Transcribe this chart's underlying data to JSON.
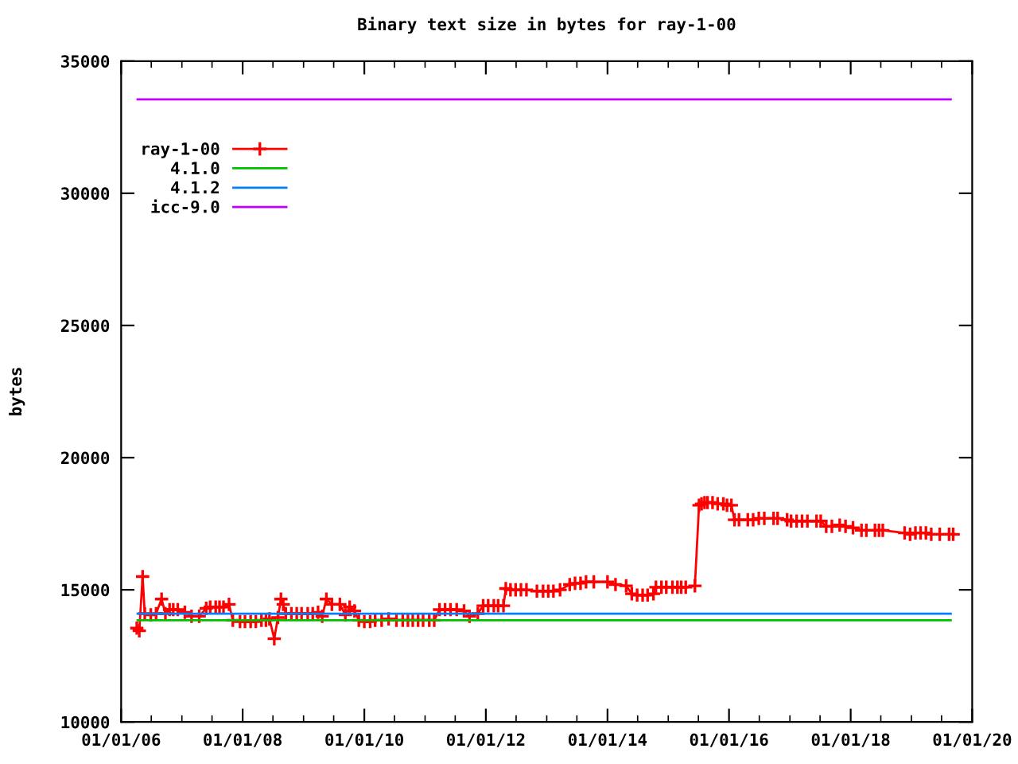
{
  "chart_data": {
    "type": "line",
    "title": "Binary text size in bytes for ray-1-00",
    "ylabel": "bytes",
    "ylim": [
      10000,
      35000
    ],
    "yticks": [
      10000,
      15000,
      20000,
      25000,
      30000,
      35000
    ],
    "xlim": [
      "2006-01-01",
      "2020-01-01"
    ],
    "xticks": [
      {
        "value": "2006-01-01",
        "label": "01/01/06"
      },
      {
        "value": "2006-07-01",
        "label": null
      },
      {
        "value": "2007-01-01",
        "label": null
      },
      {
        "value": "2007-07-01",
        "label": null
      },
      {
        "value": "2008-01-01",
        "label": "01/01/08"
      },
      {
        "value": "2008-07-01",
        "label": null
      },
      {
        "value": "2009-01-01",
        "label": null
      },
      {
        "value": "2009-07-01",
        "label": null
      },
      {
        "value": "2010-01-01",
        "label": "01/01/10"
      },
      {
        "value": "2010-07-01",
        "label": null
      },
      {
        "value": "2011-01-01",
        "label": null
      },
      {
        "value": "2011-07-01",
        "label": null
      },
      {
        "value": "2012-01-01",
        "label": "01/01/12"
      },
      {
        "value": "2012-07-01",
        "label": null
      },
      {
        "value": "2013-01-01",
        "label": null
      },
      {
        "value": "2013-07-01",
        "label": null
      },
      {
        "value": "2014-01-01",
        "label": "01/01/14"
      },
      {
        "value": "2014-07-01",
        "label": null
      },
      {
        "value": "2015-01-01",
        "label": null
      },
      {
        "value": "2015-07-01",
        "label": null
      },
      {
        "value": "2016-01-01",
        "label": "01/01/16"
      },
      {
        "value": "2016-07-01",
        "label": null
      },
      {
        "value": "2017-01-01",
        "label": null
      },
      {
        "value": "2017-07-01",
        "label": null
      },
      {
        "value": "2018-01-01",
        "label": "01/01/18"
      },
      {
        "value": "2018-07-01",
        "label": null
      },
      {
        "value": "2019-01-01",
        "label": null
      },
      {
        "value": "2019-07-01",
        "label": null
      },
      {
        "value": "2020-01-01",
        "label": "01/01/20"
      }
    ],
    "grid": false,
    "legend": "top left",
    "series": [
      {
        "name": "ray-1-00",
        "color": "#ff0000",
        "marker": "cross",
        "line_style": "solid",
        "x": [
          "2006-04-05",
          "2006-04-20",
          "2006-05-10",
          "2006-05-23",
          "2006-06-28",
          "2006-07-30",
          "2006-09-01",
          "2006-09-24",
          "2006-10-19",
          "2006-11-10",
          "2006-12-07",
          "2007-01-19",
          "2007-02-28",
          "2007-04-15",
          "2007-05-27",
          "2007-06-20",
          "2007-07-23",
          "2007-08-15",
          "2007-09-08",
          "2007-10-11",
          "2007-11-03",
          "2007-12-16",
          "2008-01-15",
          "2008-02-18",
          "2008-03-20",
          "2008-04-23",
          "2008-05-20",
          "2008-06-10",
          "2008-07-09",
          "2008-07-31",
          "2008-08-18",
          "2008-09-01",
          "2008-09-16",
          "2008-10-20",
          "2008-11-21",
          "2008-12-20",
          "2009-01-26",
          "2009-02-25",
          "2009-03-29",
          "2009-04-23",
          "2009-05-18",
          "2009-06-20",
          "2009-08-07",
          "2009-09-09",
          "2009-10-05",
          "2009-11-03",
          "2009-11-29",
          "2010-01-01",
          "2010-02-05",
          "2010-03-07",
          "2010-04-15",
          "2010-05-27",
          "2010-07-13",
          "2010-08-20",
          "2010-09-20",
          "2010-10-19",
          "2010-11-20",
          "2010-12-20",
          "2011-01-26",
          "2011-02-25",
          "2011-03-29",
          "2011-05-01",
          "2011-06-03",
          "2011-07-10",
          "2011-08-23",
          "2011-09-25",
          "2011-11-14",
          "2011-12-16",
          "2012-01-15",
          "2012-02-18",
          "2012-03-15",
          "2012-04-16",
          "2012-04-30",
          "2012-05-28",
          "2012-06-28",
          "2012-07-30",
          "2012-09-01",
          "2012-11-03",
          "2012-12-10",
          "2013-01-10",
          "2013-02-10",
          "2013-03-22",
          "2013-05-19",
          "2013-06-20",
          "2013-07-23",
          "2013-08-25",
          "2013-10-11",
          "2014-01-01",
          "2014-02-18",
          "2014-04-23",
          "2014-05-27",
          "2014-06-28",
          "2014-07-31",
          "2014-08-30",
          "2014-10-04",
          "2014-10-19",
          "2014-11-21",
          "2014-12-20",
          "2015-01-26",
          "2015-02-25",
          "2015-03-20",
          "2015-04-16",
          "2015-06-10",
          "2015-07-05",
          "2015-07-20",
          "2015-08-07",
          "2015-08-25",
          "2015-09-24",
          "2015-10-25",
          "2015-11-28",
          "2015-12-20",
          "2016-01-15",
          "2016-02-03",
          "2016-03-01",
          "2016-04-23",
          "2016-05-25",
          "2016-06-28",
          "2016-07-31",
          "2016-09-25",
          "2016-10-19",
          "2016-12-15",
          "2017-01-08",
          "2017-02-10",
          "2017-03-15",
          "2017-04-16",
          "2017-06-10",
          "2017-07-05",
          "2017-08-07",
          "2017-09-10",
          "2017-10-27",
          "2017-12-01",
          "2018-01-15",
          "2018-03-07",
          "2018-04-05",
          "2018-05-27",
          "2018-06-20",
          "2018-07-13",
          "2018-11-21",
          "2018-12-24",
          "2019-01-25",
          "2019-02-25",
          "2019-03-29",
          "2019-04-30",
          "2019-06-20",
          "2019-08-15",
          "2019-09-09"
        ],
        "values": [
          13550,
          13450,
          15500,
          14100,
          14050,
          14100,
          14650,
          14100,
          14250,
          14250,
          14250,
          14150,
          14000,
          14000,
          14300,
          14350,
          14350,
          14350,
          14350,
          14450,
          13850,
          13800,
          13800,
          13800,
          13800,
          13850,
          13850,
          13900,
          13150,
          13950,
          14650,
          14450,
          14100,
          14100,
          14100,
          14100,
          14100,
          14100,
          14150,
          14000,
          14650,
          14450,
          14450,
          14050,
          14350,
          14200,
          13850,
          13800,
          13800,
          13850,
          13850,
          13900,
          13850,
          13850,
          13850,
          13850,
          13850,
          13850,
          13850,
          13850,
          14250,
          14250,
          14250,
          14250,
          14200,
          14000,
          14100,
          14400,
          14400,
          14400,
          14400,
          14400,
          15050,
          15000,
          15000,
          15000,
          15000,
          14950,
          14950,
          14950,
          14950,
          15000,
          15200,
          15250,
          15250,
          15300,
          15300,
          15300,
          15200,
          15150,
          14850,
          14800,
          14800,
          14800,
          14850,
          15100,
          15100,
          15100,
          15100,
          15100,
          15100,
          15100,
          15150,
          18200,
          18250,
          18300,
          18300,
          18300,
          18250,
          18250,
          18200,
          18200,
          17650,
          17650,
          17650,
          17650,
          17700,
          17700,
          17700,
          17700,
          17650,
          17600,
          17600,
          17600,
          17600,
          17600,
          17600,
          17400,
          17400,
          17450,
          17400,
          17350,
          17250,
          17250,
          17250,
          17250,
          17250,
          17150,
          17100,
          17150,
          17150,
          17150,
          17100,
          17100,
          17100,
          17100
        ]
      },
      {
        "name": "4.1.0",
        "color": "#00c000",
        "marker": "none",
        "line_style": "solid",
        "x": [
          "2006-04-10",
          "2019-08-25"
        ],
        "values": [
          13850,
          13850
        ]
      },
      {
        "name": "4.1.2",
        "color": "#0080ff",
        "marker": "none",
        "line_style": "solid",
        "x": [
          "2006-04-10",
          "2019-08-25"
        ],
        "values": [
          14100,
          14100
        ]
      },
      {
        "name": "icc-9.0",
        "color": "#c000ff",
        "marker": "none",
        "line_style": "solid",
        "x": [
          "2006-04-10",
          "2019-08-25"
        ],
        "values": [
          33550,
          33550
        ]
      }
    ]
  }
}
